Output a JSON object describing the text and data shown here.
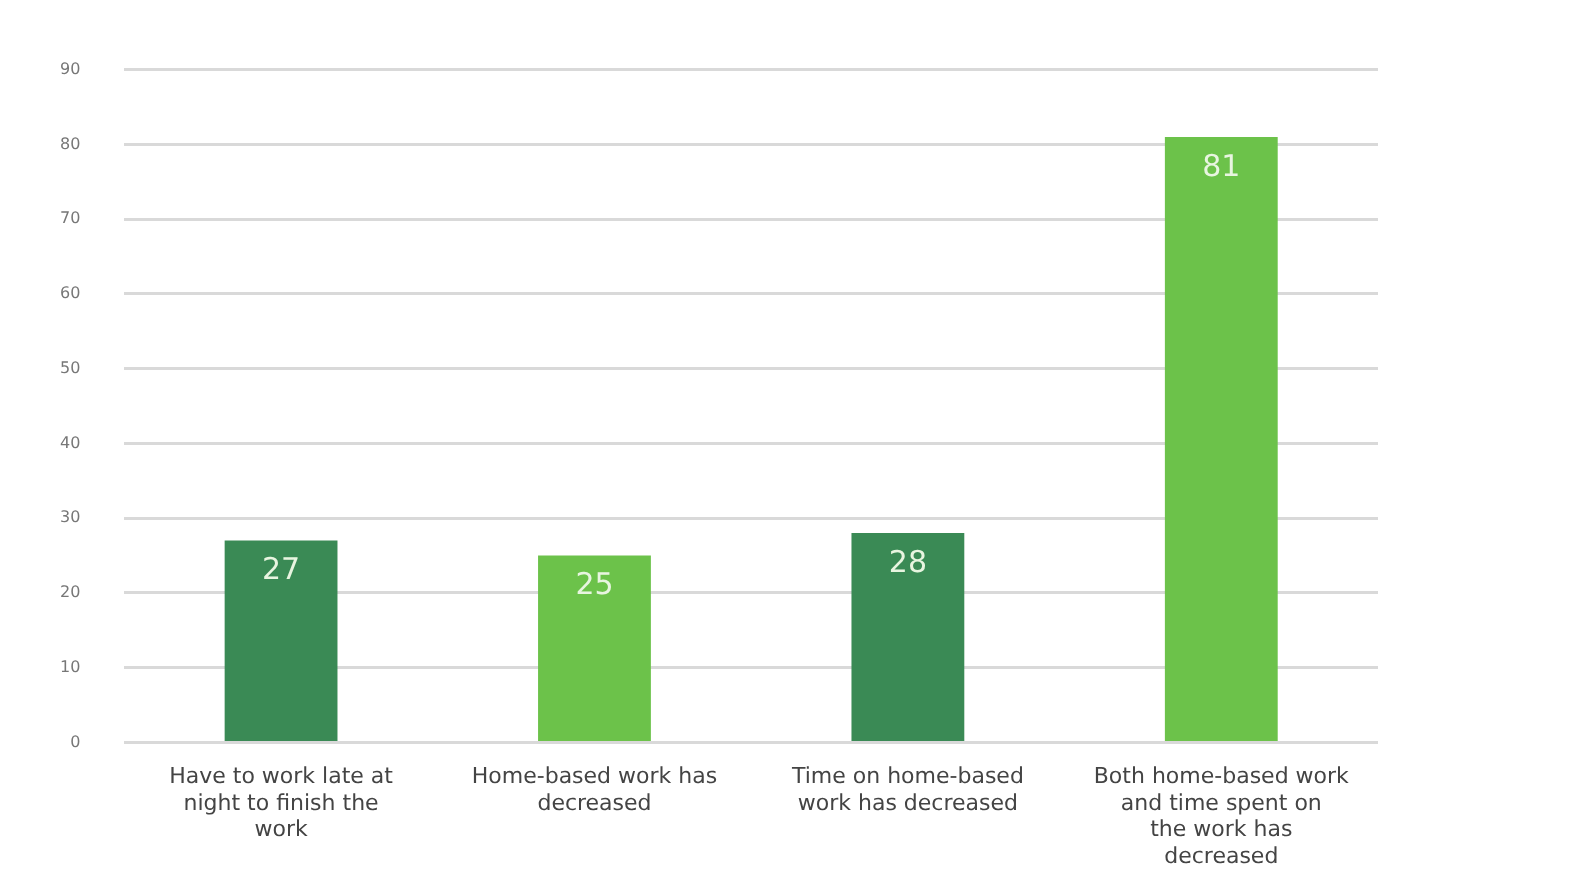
{
  "chart_data": {
    "type": "bar",
    "categories": [
      "Have to work late at night to finish the work",
      "Home-based work has decreased",
      "Time on home-based work has decreased",
      "Both home-based work and time spent on the work has decreased"
    ],
    "values": [
      27,
      25,
      28,
      81
    ],
    "colors": [
      "#3a8a55",
      "#6cc24a",
      "#3a8a55",
      "#6cc24a"
    ],
    "ylim": [
      0,
      90
    ],
    "yticks": [
      0,
      10,
      20,
      30,
      40,
      50,
      60,
      70,
      80,
      90
    ],
    "grid": "y",
    "data_labels": true
  }
}
